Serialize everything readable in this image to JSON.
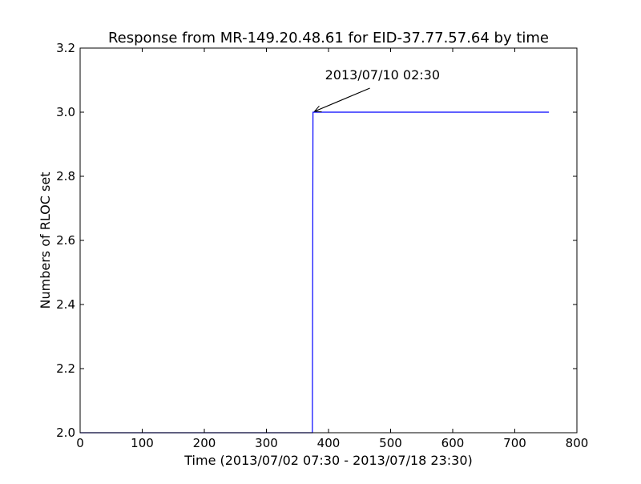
{
  "chart_data": {
    "type": "line",
    "title": "Response from MR-149.20.48.61 for EID-37.77.57.64 by time",
    "xlabel": "Time (2013/07/02 07:30 - 2013/07/18 23:30)",
    "ylabel": "Numbers of RLOC set",
    "xlim": [
      0,
      800
    ],
    "ylim": [
      2.0,
      3.2
    ],
    "x_ticks": [
      0,
      100,
      200,
      300,
      400,
      500,
      600,
      700,
      800
    ],
    "x_tick_labels": [
      "0",
      "100",
      "200",
      "300",
      "400",
      "500",
      "600",
      "700",
      "800"
    ],
    "y_ticks": [
      2.0,
      2.2,
      2.4,
      2.6,
      2.8,
      3.0,
      3.2
    ],
    "y_tick_labels": [
      "2.0",
      "2.2",
      "2.4",
      "2.6",
      "2.8",
      "3.0",
      "3.2"
    ],
    "grid": false,
    "series": [
      {
        "color": "#0000ff",
        "x": [
          0,
          374,
          375,
          755
        ],
        "y": [
          2.0,
          2.0,
          3.0,
          3.0
        ]
      }
    ],
    "annotations": [
      {
        "text": "2013/07/10 02:30",
        "x": 375,
        "y": 3.0,
        "text_x": 375,
        "text_y": 3.1
      }
    ]
  }
}
